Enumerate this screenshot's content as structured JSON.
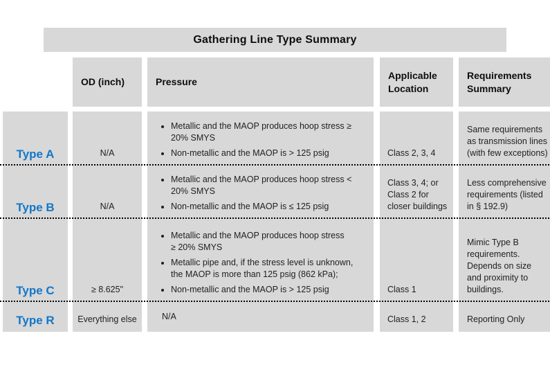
{
  "title": "Gathering Line Type Summary",
  "columns": {
    "od": "OD (inch)",
    "pressure": "Pressure",
    "location": "Applicable\nLocation",
    "requirements": "Requirements\nSummary"
  },
  "rows": [
    {
      "label": "Type A",
      "od": "N/A",
      "pressure_bullets": [
        "Metallic and the MAOP produces hoop stress ≥\n20% SMYS",
        "Non-metallic and the MAOP is > 125 psig"
      ],
      "location": "Class 2, 3, 4",
      "requirements": "Same requirements\nas transmission lines\n(with few exceptions)"
    },
    {
      "label": "Type B",
      "od": "N/A",
      "pressure_bullets": [
        "Metallic and the MAOP produces hoop stress <\n20% SMYS",
        "Non-metallic and the MAOP is ≤ 125 psig"
      ],
      "location": "Class 3, 4; or\nClass 2 for\ncloser buildings",
      "requirements": "Less comprehensive\nrequirements (listed\nin § 192.9)"
    },
    {
      "label": "Type C",
      "od": "≥ 8.625\"",
      "pressure_bullets": [
        "Metallic and the MAOP produces hoop stress\n≥ 20% SMYS",
        "Metallic pipe and, if the stress level is unknown,\nthe MAOP is more than 125 psig (862 kPa);",
        "Non-metallic and the MAOP is > 125 psig"
      ],
      "location": "Class 1",
      "requirements": "Mimic Type B\nrequirements.\nDepends on size\nand proximity to\nbuildings."
    },
    {
      "label": "Type R",
      "od": "Everything else",
      "pressure_text": "N/A",
      "location": "Class 1, 2",
      "requirements": "Reporting Only"
    }
  ],
  "colors": {
    "cell_background": "#d8d8d8",
    "type_label_blue": "#1277c9",
    "body_text": "#1f1f1f"
  }
}
